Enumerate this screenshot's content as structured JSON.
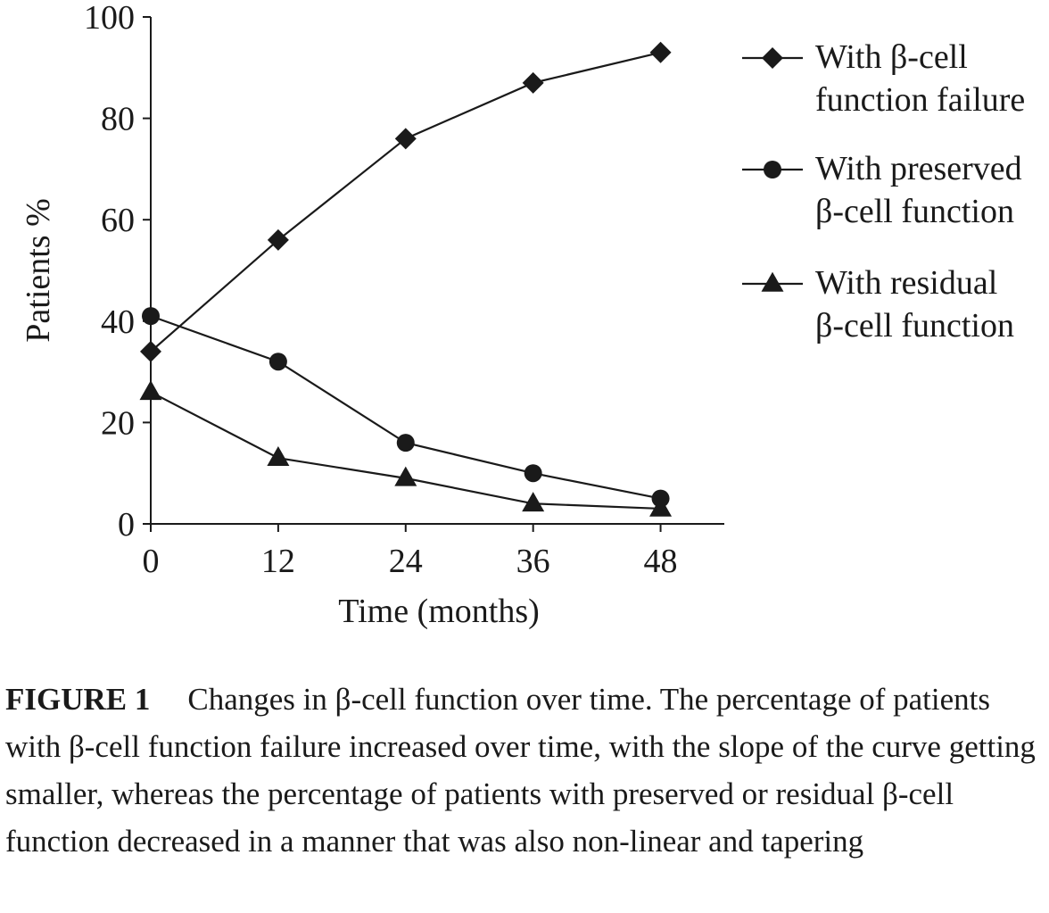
{
  "chart_data": {
    "type": "line",
    "title": "",
    "xlabel": "Time (months)",
    "ylabel": "Patients %",
    "x": [
      0,
      12,
      24,
      36,
      48
    ],
    "xticks": [
      "0",
      "12",
      "24",
      "36",
      "48"
    ],
    "yticks": [
      "0",
      "20",
      "40",
      "60",
      "80",
      "100"
    ],
    "xlim": [
      0,
      54
    ],
    "ylim": [
      0,
      100
    ],
    "grid": false,
    "legend_position": "right",
    "series": [
      {
        "name": "With β-cell function failure",
        "legend_lines": [
          "With β-cell",
          "function failure"
        ],
        "marker": "diamond",
        "values": [
          34,
          56,
          76,
          87,
          93
        ]
      },
      {
        "name": "With preserved β-cell function",
        "legend_lines": [
          "With preserved",
          "β-cell function"
        ],
        "marker": "circle",
        "values": [
          41,
          32,
          16,
          10,
          5
        ]
      },
      {
        "name": "With residual β-cell function",
        "legend_lines": [
          "With residual",
          "β-cell function"
        ],
        "marker": "triangle",
        "values": [
          26,
          13,
          9,
          4,
          3
        ]
      }
    ]
  },
  "caption": {
    "label": "FIGURE 1",
    "text": "Changes in β-cell function over time. The percentage of patients with β-cell function failure increased over time, with the slope of the curve getting smaller, whereas the percentage of patients with preserved or residual β-cell function decreased in a manner that was also non-linear and tapering"
  }
}
